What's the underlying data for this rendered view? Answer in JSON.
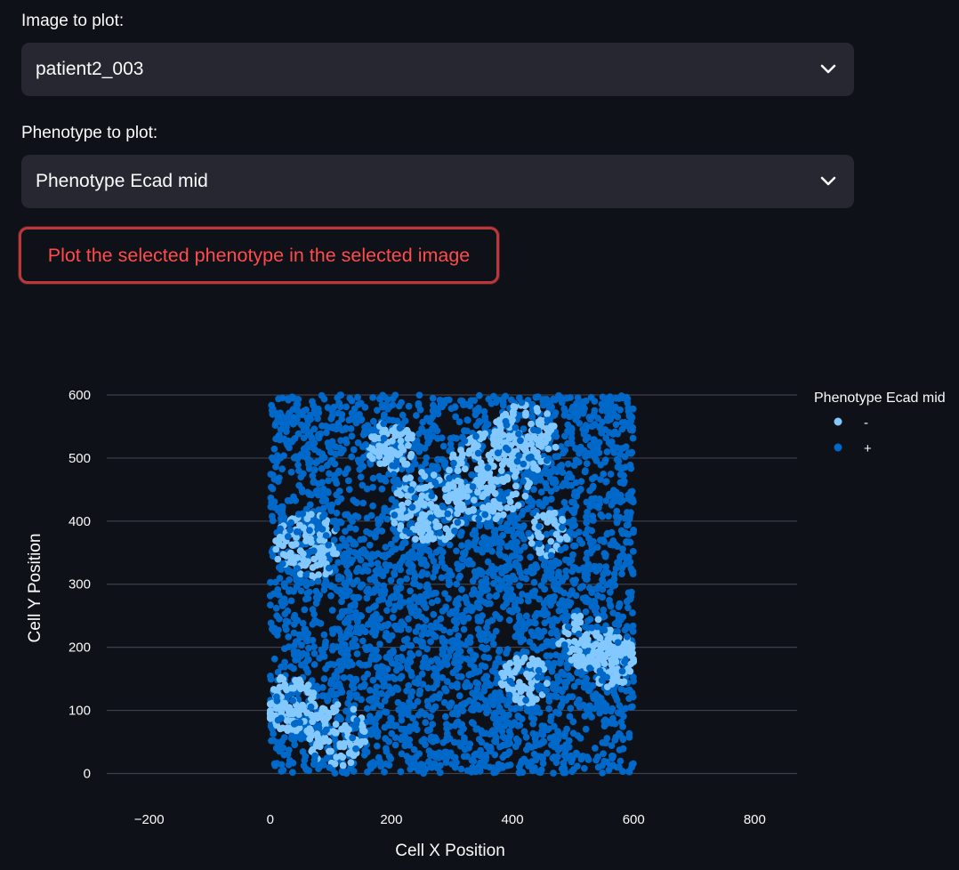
{
  "image_select": {
    "label": "Image to plot:",
    "value": "patient2_003"
  },
  "phenotype_select": {
    "label": "Phenotype to plot:",
    "value": "Phenotype Ecad mid"
  },
  "plot_button": {
    "label": "Plot the selected phenotype in the selected image"
  },
  "icons": {
    "select_toggle": "chevron-down-icon"
  },
  "colors": {
    "background": "#0e1117",
    "select_bg": "#262730",
    "button_text": "#ff4b4b",
    "button_border": "#b8383c",
    "series_neg": "#83c9ff",
    "series_pos": "#0068c9",
    "gridline": "#3d414b"
  },
  "chart_data": {
    "type": "scatter",
    "title": "",
    "xlabel": "Cell X Position",
    "ylabel": "Cell Y Position",
    "xlim": [
      -270,
      870
    ],
    "ylim": [
      -12,
      600
    ],
    "xticks": [
      -200,
      0,
      200,
      400,
      600,
      800
    ],
    "yticks": [
      0,
      100,
      200,
      300,
      400,
      500,
      600
    ],
    "grid": "horizontal",
    "legend": {
      "title": "Phenotype Ecad mid",
      "placement": "top-right"
    },
    "series": [
      {
        "name": "-",
        "color": "#83c9ff",
        "clusters": [
          {
            "cx": 60,
            "cy": 360,
            "r": 55,
            "n": 110
          },
          {
            "cx": 30,
            "cy": 110,
            "r": 45,
            "n": 100
          },
          {
            "cx": 110,
            "cy": 60,
            "r": 50,
            "n": 90
          },
          {
            "cx": 200,
            "cy": 520,
            "r": 40,
            "n": 70
          },
          {
            "cx": 260,
            "cy": 420,
            "r": 60,
            "n": 130
          },
          {
            "cx": 360,
            "cy": 470,
            "r": 70,
            "n": 160
          },
          {
            "cx": 420,
            "cy": 530,
            "r": 55,
            "n": 120
          },
          {
            "cx": 420,
            "cy": 150,
            "r": 40,
            "n": 60
          },
          {
            "cx": 520,
            "cy": 210,
            "r": 45,
            "n": 70
          },
          {
            "cx": 575,
            "cy": 190,
            "r": 30,
            "n": 50
          },
          {
            "cx": 460,
            "cy": 380,
            "r": 35,
            "n": 40
          },
          {
            "cx": 560,
            "cy": 170,
            "r": 35,
            "n": 40
          }
        ]
      },
      {
        "name": "+",
        "color": "#0068c9",
        "x_range": [
          0,
          600
        ],
        "y_range": [
          0,
          600
        ],
        "n": 3400
      }
    ]
  }
}
